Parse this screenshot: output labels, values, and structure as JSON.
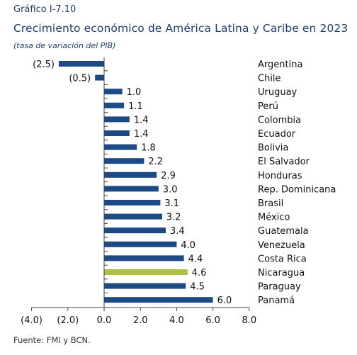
{
  "figure_label": "Gráfico I-7.10",
  "title": "Crecimiento económico de América Latina y Caribe en 2023",
  "subtitle": "(tasa de variación del PIB)",
  "source": "Fuente: FMI y BCN.",
  "colors": {
    "bar": "#1b4a85",
    "highlight": "#a9c23f",
    "text": "#1b3d6e"
  },
  "chart_data": {
    "type": "bar",
    "orientation": "horizontal",
    "categories": [
      "Argentina",
      "Chile",
      "Uruguay",
      "Perú",
      "Colombia",
      "Ecuador",
      "Bolivia",
      "El Salvador",
      "Honduras",
      "Rep. Dominicana",
      "Brasil",
      "México",
      "Guatemala",
      "Venezuela",
      "Costa Rica",
      "Nicaragua",
      "Paraguay",
      "Panamá"
    ],
    "values": [
      -2.5,
      -0.5,
      1.0,
      1.1,
      1.4,
      1.4,
      1.8,
      2.2,
      2.9,
      3.0,
      3.1,
      3.2,
      3.4,
      4.0,
      4.4,
      4.6,
      4.5,
      6.0
    ],
    "value_labels": [
      "(2.5)",
      "(0.5)",
      "1.0",
      "1.1",
      "1.4",
      "1.4",
      "1.8",
      "2.2",
      "2.9",
      "3.0",
      "3.1",
      "3.2",
      "3.4",
      "4.0",
      "4.4",
      "4.6",
      "4.5",
      "6.0"
    ],
    "highlight": "Nicaragua",
    "xlim": [
      -4.0,
      8.0
    ],
    "xticks": [
      -4.0,
      -2.0,
      0.0,
      2.0,
      4.0,
      6.0,
      8.0
    ],
    "xtick_labels": [
      "(4.0)",
      "(2.0)",
      "0.0",
      "2.0",
      "4.0",
      "6.0",
      "8.0"
    ],
    "grid": false
  }
}
